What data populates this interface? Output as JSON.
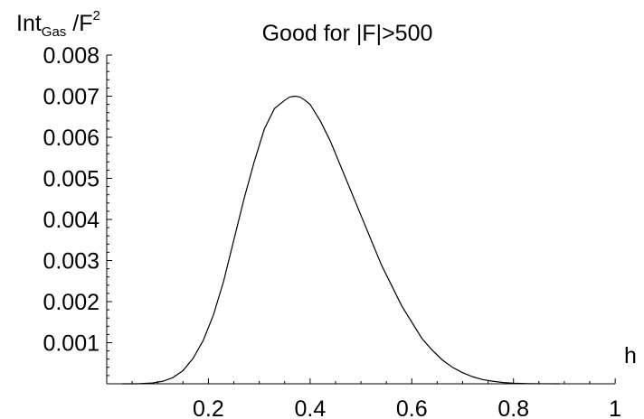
{
  "chart_data": {
    "type": "line",
    "title": "Good for |F|>500",
    "xlabel": "h",
    "ylabel": {
      "main": "Int",
      "subscript": "Gas",
      "rest": " /F",
      "superscript": "2"
    },
    "xlim": [
      0,
      1.03
    ],
    "ylim": [
      0,
      0.008
    ],
    "xticks": [
      0.2,
      0.4,
      0.6,
      0.8,
      1
    ],
    "xtick_labels": [
      "0.2",
      "0.4",
      "0.6",
      "0.8",
      "1"
    ],
    "yticks": [
      0.001,
      0.002,
      0.003,
      0.004,
      0.005,
      0.006,
      0.007,
      0.008
    ],
    "ytick_labels": [
      "0.001",
      "0.002",
      "0.003",
      "0.004",
      "0.005",
      "0.006",
      "0.007",
      "0.008"
    ],
    "grid": false,
    "series": [
      {
        "x": [
          0.03,
          0.06,
          0.09,
          0.11,
          0.13,
          0.15,
          0.17,
          0.19,
          0.21,
          0.23,
          0.25,
          0.27,
          0.29,
          0.31,
          0.33,
          0.35,
          0.36,
          0.37,
          0.38,
          0.39,
          0.4,
          0.42,
          0.44,
          0.46,
          0.48,
          0.5,
          0.52,
          0.54,
          0.56,
          0.58,
          0.6,
          0.62,
          0.64,
          0.66,
          0.68,
          0.7,
          0.72,
          0.74,
          0.76,
          0.78,
          0.8,
          0.83,
          0.86,
          0.89
        ],
        "y": [
          0.0,
          0.0,
          2e-05,
          6e-05,
          0.00015,
          0.00032,
          0.00062,
          0.00106,
          0.00168,
          0.0025,
          0.0035,
          0.0045,
          0.0054,
          0.0062,
          0.0067,
          0.0069,
          0.00698,
          0.007,
          0.00698,
          0.0069,
          0.0068,
          0.0064,
          0.0059,
          0.0053,
          0.0047,
          0.0041,
          0.0035,
          0.0029,
          0.0024,
          0.0019,
          0.0015,
          0.0011,
          0.00082,
          0.00058,
          0.0004,
          0.00027,
          0.00017,
          0.0001,
          6e-05,
          3e-05,
          1.5e-05,
          4e-06,
          1e-06,
          0.0
        ]
      }
    ]
  }
}
